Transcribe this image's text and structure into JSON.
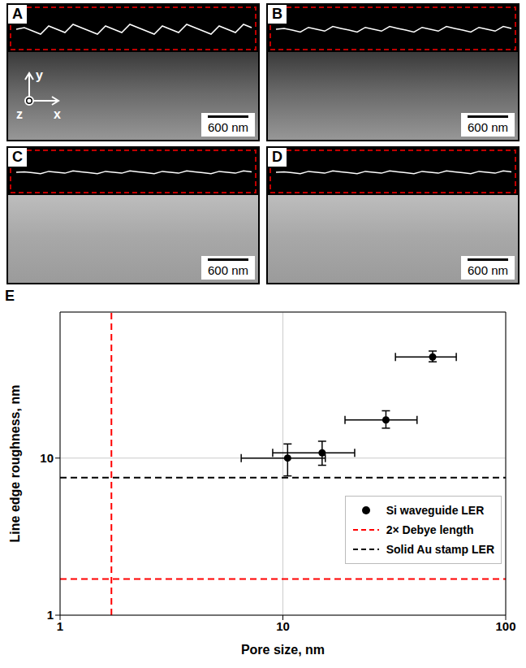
{
  "panels": [
    {
      "label": "A",
      "scale_bar": "600 nm"
    },
    {
      "label": "B",
      "scale_bar": "600 nm"
    },
    {
      "label": "C",
      "scale_bar": "600 nm"
    },
    {
      "label": "D",
      "scale_bar": "600 nm"
    }
  ],
  "axes_indicator": [
    "y",
    "z",
    "x"
  ],
  "chart_data": {
    "type": "scatter",
    "panel_label": "E",
    "x_label": "Pore size, nm",
    "y_label": "Line edge roughness, nm",
    "log": true,
    "grid": true,
    "legend": "lower right",
    "xlim": [
      1,
      100
    ],
    "ylim": [
      1,
      85
    ],
    "xticks": [
      1,
      10,
      100
    ],
    "yticks": [
      1,
      10
    ],
    "series": [
      {
        "name": "Si waveguide LER",
        "type": "scatter",
        "color": "#000000",
        "marker": "circle",
        "x": [
          10.5,
          15,
          29,
          47
        ],
        "values": [
          10,
          10.8,
          17.5,
          44
        ],
        "x_error": [
          [
            4,
            5
          ],
          [
            6,
            6
          ],
          [
            10,
            11
          ],
          [
            15,
            13
          ]
        ],
        "y_error": [
          [
            2.3,
            2.3
          ],
          [
            1.8,
            2
          ],
          [
            2,
            2.5
          ],
          [
            3,
            4
          ]
        ]
      },
      {
        "name": "2× Debye length",
        "type": "reference",
        "color": "#ff0000",
        "line_style": "dashed",
        "x": 1.7,
        "y": 1.7
      },
      {
        "name": "Solid Au stamp LER",
        "type": "reference",
        "color": "#000000",
        "line_style": "dashed",
        "y": 7.5
      }
    ]
  }
}
